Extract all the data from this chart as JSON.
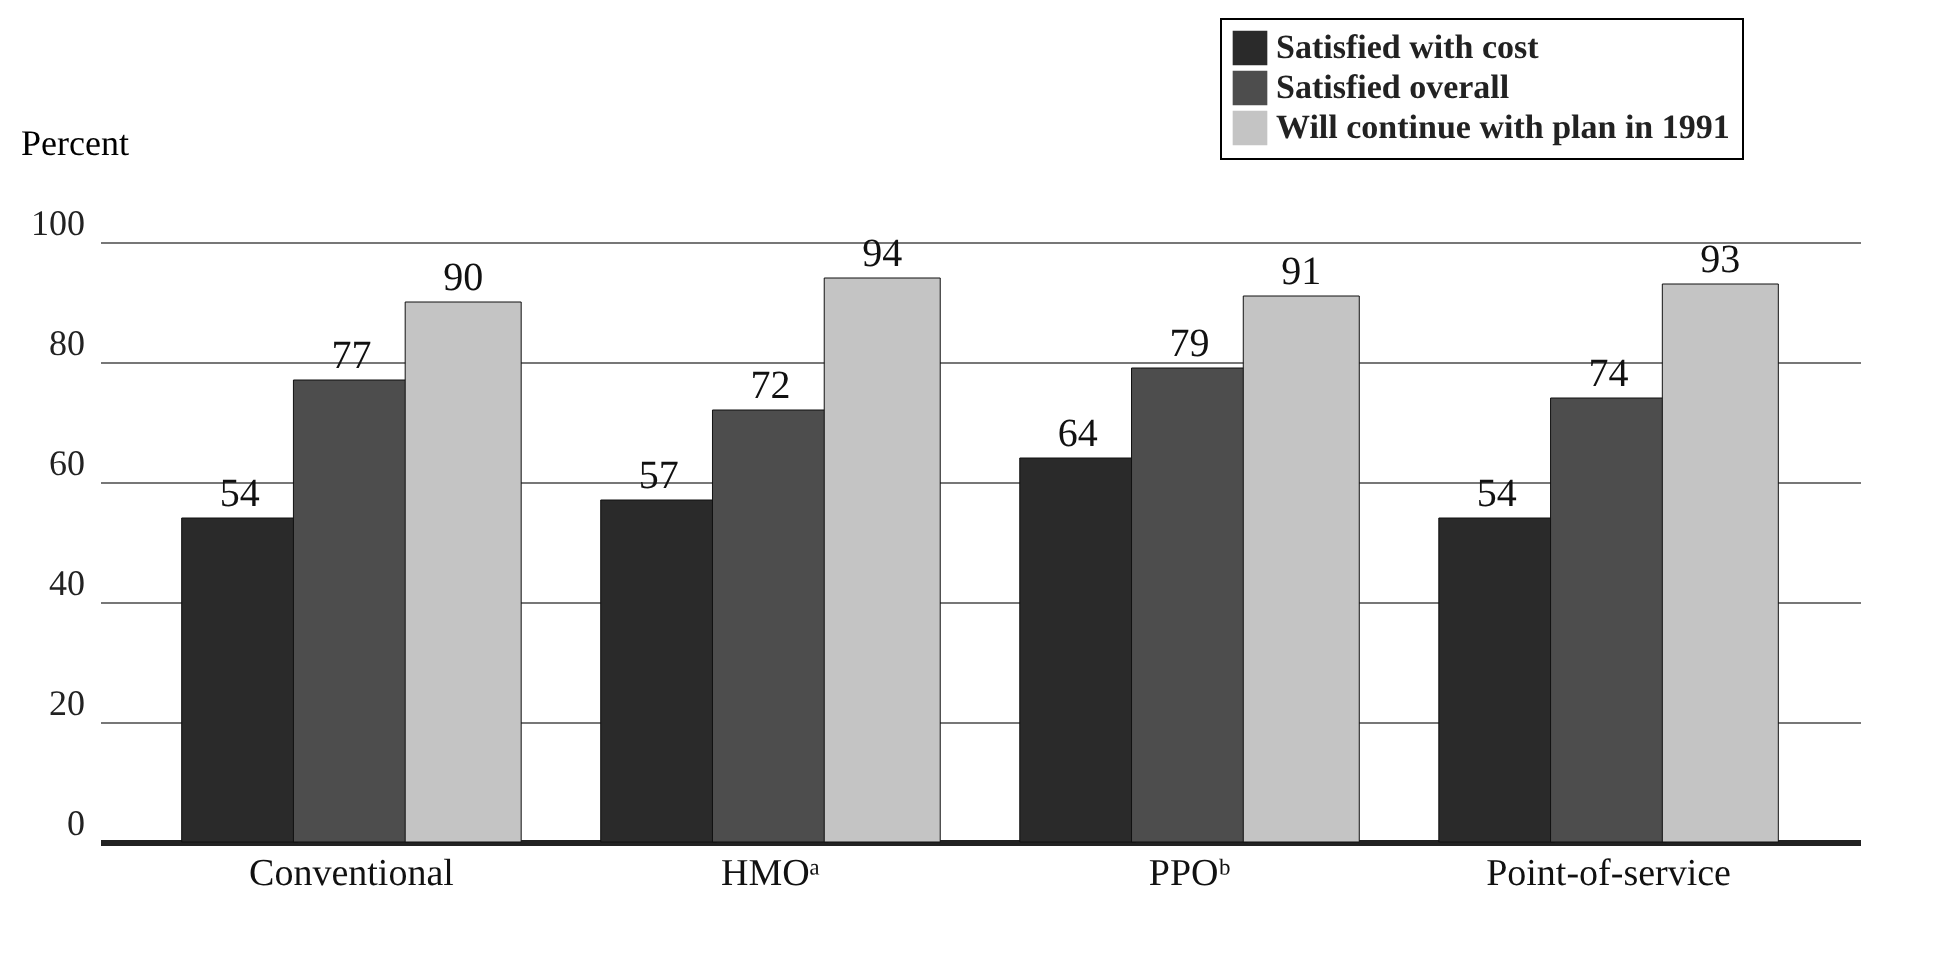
{
  "chart_data": {
    "type": "bar",
    "ylabel": "Percent",
    "categories": [
      "Conventional",
      "HMOᵃ",
      "PPOᵇ",
      "Point-of-service"
    ],
    "series": [
      {
        "name": "Satisfied with cost",
        "color": "#2a2a2a",
        "values": [
          54,
          57,
          64,
          54
        ]
      },
      {
        "name": "Satisfied overall",
        "color": "#4d4d4d",
        "values": [
          77,
          72,
          79,
          74
        ]
      },
      {
        "name": "Will continue with plan in 1991",
        "color": "#c4c4c4",
        "values": [
          90,
          94,
          91,
          93
        ]
      }
    ],
    "ylim": [
      0,
      100
    ],
    "yticks": [
      0,
      20,
      40,
      60,
      80,
      100
    ],
    "grid": "y",
    "legend": "top right",
    "data_labels": true
  }
}
